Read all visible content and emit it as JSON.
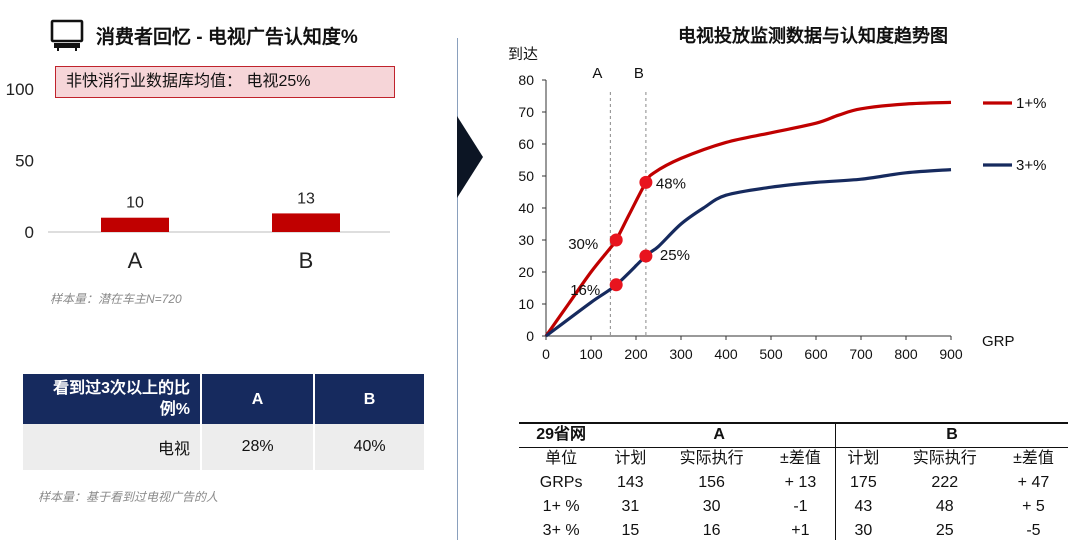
{
  "left": {
    "title": "消费者回忆 - 电视广告认知度%",
    "benchmark": "非快消行业数据库均值：  电视25%",
    "sample_note": "样本量：潜在车主N=720"
  },
  "recall_table": {
    "header": [
      "看到过3次以上的比例%",
      "A",
      "B"
    ],
    "rows": [
      [
        "电视",
        "28%",
        "40%"
      ]
    ],
    "note": "样本量：基于看到过电视广告的人"
  },
  "right": {
    "title": "电视投放监测数据与认知度趋势图"
  },
  "plan_table": {
    "region": "29省网",
    "groupA": "A",
    "groupB": "B",
    "header": [
      "单位",
      "计划",
      "实际执行",
      "±差值",
      "计划",
      "实际执行",
      "±差值"
    ],
    "rows": [
      [
        "GRPs",
        "143",
        "156",
        "+ 13",
        "175",
        "222",
        "+ 47"
      ],
      [
        "1+ %",
        "31",
        "30",
        "-1",
        "43",
        "48",
        "+ 5"
      ],
      [
        "3+ %",
        "15",
        "16",
        "+1",
        "30",
        "25",
        "-5"
      ]
    ]
  },
  "colors": {
    "red": "#c00000",
    "navy": "#162a5e",
    "marker": "#e8141e"
  },
  "chart_data": [
    {
      "type": "bar",
      "categories": [
        "A",
        "B"
      ],
      "values": [
        10,
        13
      ],
      "ylim": [
        0,
        100
      ],
      "yticks": [
        0,
        50,
        100
      ],
      "color": "#c00000"
    },
    {
      "type": "line",
      "ylabel": "到达",
      "xlabel": "GRP",
      "xlim": [
        0,
        900
      ],
      "ylim": [
        0,
        80
      ],
      "xticks": [
        0,
        100,
        200,
        300,
        400,
        500,
        600,
        700,
        800,
        900
      ],
      "yticks": [
        0,
        10,
        20,
        30,
        40,
        50,
        60,
        70,
        80
      ],
      "legend_position": "right",
      "series": [
        {
          "name": "1+%",
          "color": "#c00000",
          "x": [
            0,
            50,
            100,
            143,
            156,
            185,
            222,
            240,
            300,
            400,
            500,
            600,
            650,
            700,
            800,
            900
          ],
          "values": [
            0,
            10,
            20,
            27.5,
            30,
            38,
            48,
            51,
            55.5,
            60.5,
            63.5,
            66.5,
            69,
            71,
            72.5,
            73
          ]
        },
        {
          "name": "3+%",
          "color": "#162a5e",
          "x": [
            0,
            100,
            156,
            222,
            250,
            300,
            350,
            400,
            500,
            600,
            700,
            800,
            900
          ],
          "values": [
            0,
            10.5,
            16,
            25,
            28,
            35,
            40,
            44,
            46.5,
            48,
            49,
            51,
            52
          ]
        }
      ],
      "markers": [
        {
          "x": 156,
          "y": 30,
          "label": "30%",
          "series": "1+%"
        },
        {
          "x": 222,
          "y": 48,
          "label": "48%",
          "series": "1+%"
        },
        {
          "x": 156,
          "y": 16,
          "label": "16%",
          "series": "3+%"
        },
        {
          "x": 222,
          "y": 25,
          "label": "25%",
          "series": "3+%"
        }
      ],
      "reference_lines": [
        {
          "x": 143,
          "label": "A"
        },
        {
          "x": 222,
          "label": "B"
        }
      ]
    }
  ]
}
